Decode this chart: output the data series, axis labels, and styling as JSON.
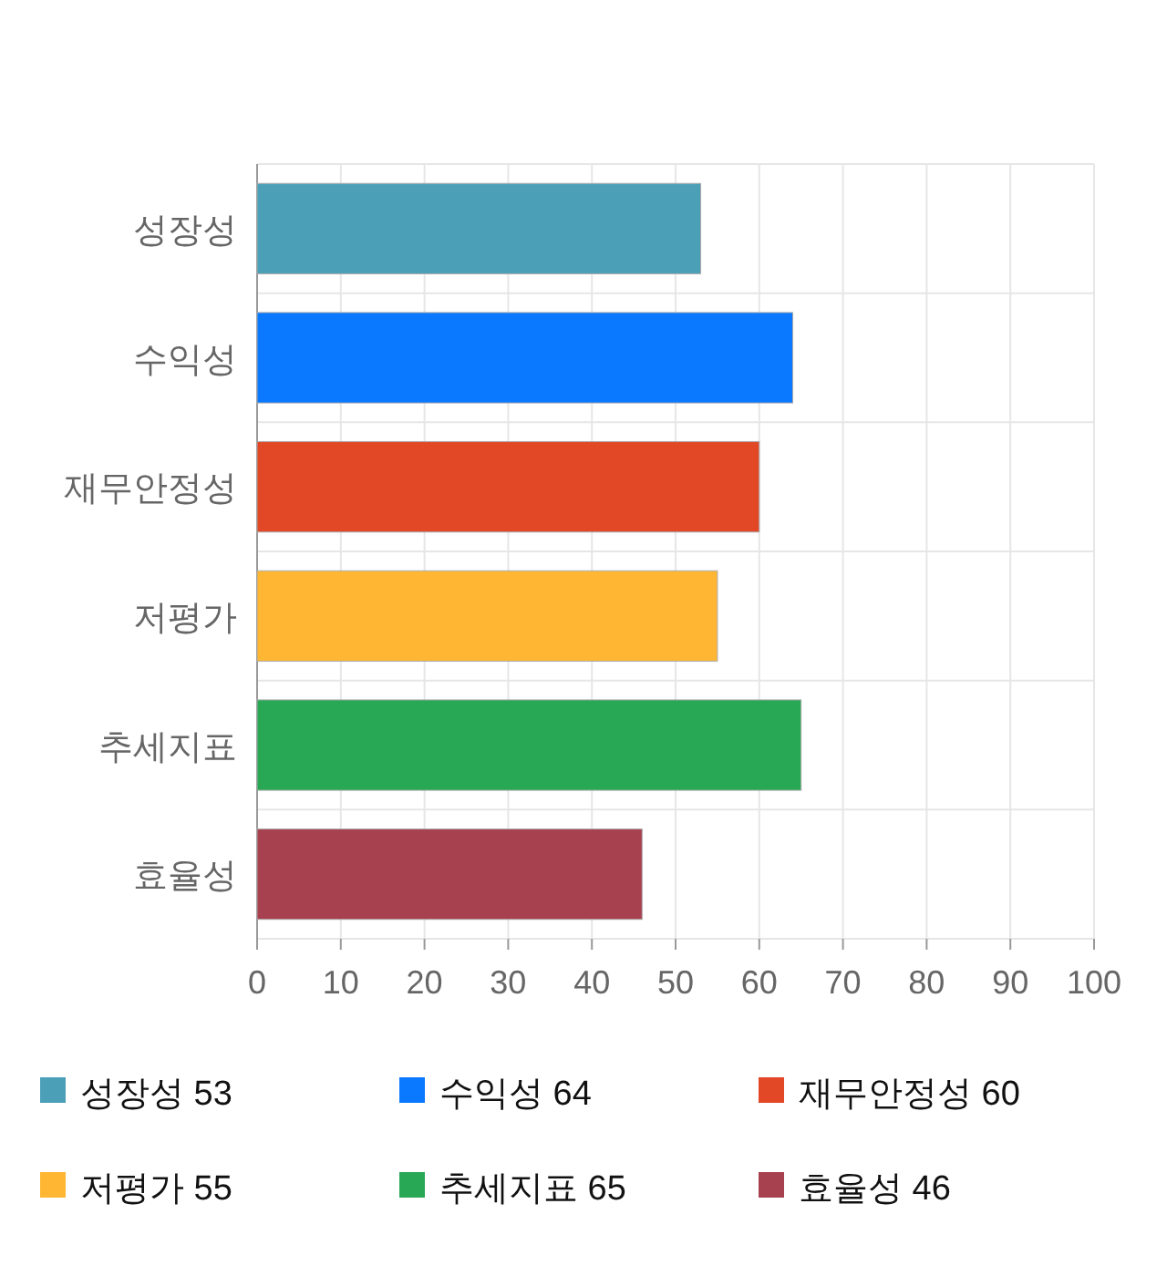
{
  "chart_data": {
    "type": "bar",
    "orientation": "horizontal",
    "categories": [
      "성장성",
      "수익성",
      "재무안정성",
      "저평가",
      "추세지표",
      "효율성"
    ],
    "series": [
      {
        "name": "성장성 53",
        "color": "#4ba0b8",
        "values": [
          53,
          null,
          null,
          null,
          null,
          null
        ]
      },
      {
        "name": "수익성 64",
        "color": "#0a78ff",
        "values": [
          null,
          64,
          null,
          null,
          null,
          null
        ]
      },
      {
        "name": "재무안정성 60",
        "color": "#e24726",
        "values": [
          null,
          null,
          60,
          null,
          null,
          null
        ]
      },
      {
        "name": "저평가 55",
        "color": "#ffb733",
        "values": [
          null,
          null,
          null,
          55,
          null,
          null
        ]
      },
      {
        "name": "추세지표 65",
        "color": "#28a755",
        "values": [
          null,
          null,
          null,
          null,
          65,
          null
        ]
      },
      {
        "name": "효율성 46",
        "color": "#a8414f",
        "values": [
          null,
          null,
          null,
          null,
          null,
          46
        ]
      }
    ],
    "xlim": [
      0,
      100
    ],
    "xticks": [
      0,
      10,
      20,
      30,
      40,
      50,
      60,
      70,
      80,
      90,
      100
    ],
    "grid": true,
    "legend": "bottom"
  }
}
